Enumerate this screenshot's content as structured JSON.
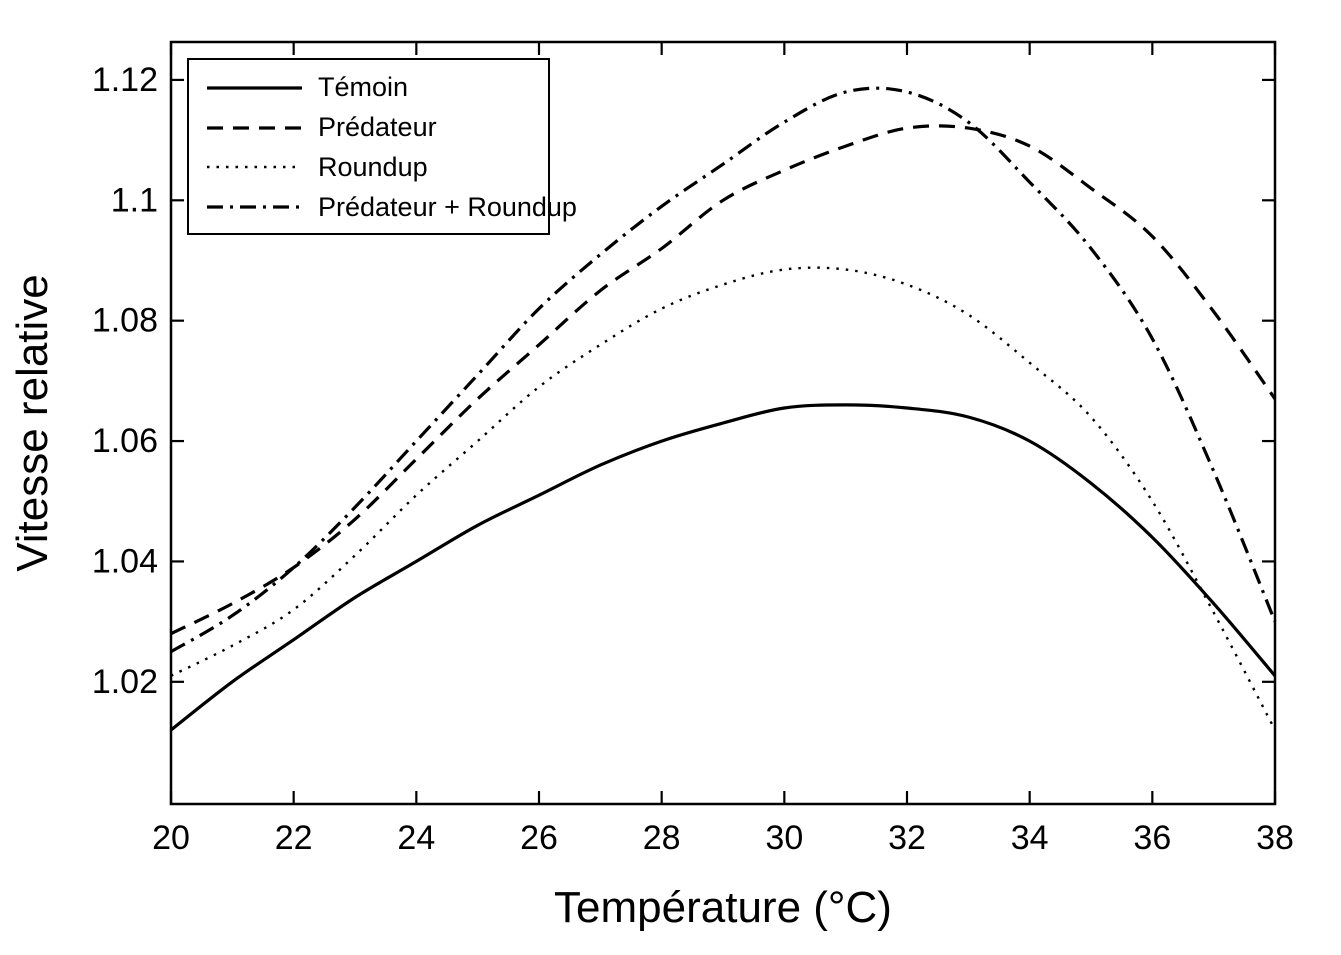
{
  "page": {
    "background": "#ffffff",
    "foreground": "#000000"
  },
  "chart_data": {
    "type": "line",
    "title": "",
    "xlabel": "Température (°C)",
    "ylabel": "Vitesse relative",
    "xlim": [
      20,
      38
    ],
    "ylim": [
      0.9997,
      1.1263
    ],
    "xticks": [
      20,
      22,
      24,
      26,
      28,
      30,
      32,
      34,
      36,
      38
    ],
    "xtick_labels": [
      "20",
      "22",
      "24",
      "26",
      "28",
      "30",
      "32",
      "34",
      "36",
      "38"
    ],
    "yticks": [
      1.02,
      1.04,
      1.06,
      1.08,
      1.1,
      1.12
    ],
    "ytick_labels": [
      "1.02",
      "1.04",
      "1.06",
      "1.08",
      "1.1",
      "1.12"
    ],
    "grid": false,
    "legend_position": "top-left",
    "line_color": "#000000",
    "x": [
      20,
      21,
      22,
      23,
      24,
      25,
      26,
      27,
      28,
      29,
      30,
      31,
      32,
      33,
      34,
      35,
      36,
      37,
      38
    ],
    "series": [
      {
        "name": "Témoin",
        "style": "solid",
        "dash": [],
        "width": 3.2,
        "values": [
          1.012,
          1.02,
          1.027,
          1.034,
          1.04,
          1.046,
          1.051,
          1.056,
          1.06,
          1.063,
          1.0655,
          1.066,
          1.0655,
          1.064,
          1.06,
          1.053,
          1.044,
          1.033,
          1.021
        ]
      },
      {
        "name": "Prédateur",
        "style": "dashed",
        "dash": [
          16,
          10
        ],
        "width": 3.2,
        "values": [
          1.028,
          1.033,
          1.039,
          1.047,
          1.057,
          1.067,
          1.076,
          1.085,
          1.092,
          1.1,
          1.105,
          1.109,
          1.112,
          1.112,
          1.109,
          1.102,
          1.094,
          1.0815,
          1.067
        ]
      },
      {
        "name": "Roundup",
        "style": "dotted",
        "dash": [
          2.5,
          7
        ],
        "width": 2.4,
        "values": [
          1.021,
          1.026,
          1.032,
          1.041,
          1.051,
          1.06,
          1.069,
          1.076,
          1.082,
          1.086,
          1.0885,
          1.0885,
          1.086,
          1.081,
          1.073,
          1.064,
          1.05,
          1.0315,
          1.012
        ]
      },
      {
        "name": "Prédateur + Roundup",
        "style": "dashdot",
        "dash": [
          16,
          7,
          3,
          7
        ],
        "width": 3.2,
        "values": [
          1.025,
          1.031,
          1.039,
          1.049,
          1.06,
          1.071,
          1.082,
          1.091,
          1.099,
          1.106,
          1.113,
          1.118,
          1.118,
          1.113,
          1.103,
          1.092,
          1.077,
          1.055,
          1.03
        ]
      }
    ]
  }
}
